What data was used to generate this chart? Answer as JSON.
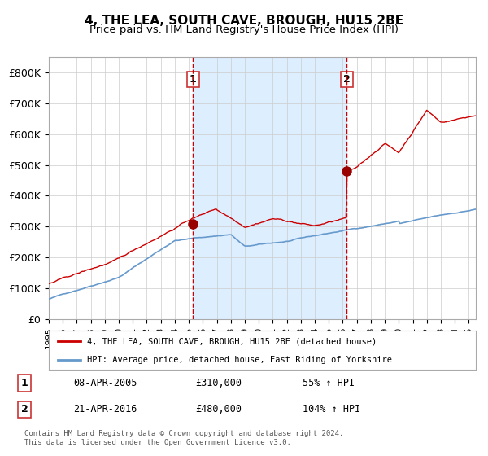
{
  "title": "4, THE LEA, SOUTH CAVE, BROUGH, HU15 2BE",
  "subtitle": "Price paid vs. HM Land Registry's House Price Index (HPI)",
  "title_fontsize": 11,
  "subtitle_fontsize": 9.5,
  "legend_label_red": "4, THE LEA, SOUTH CAVE, BROUGH, HU15 2BE (detached house)",
  "legend_label_blue": "HPI: Average price, detached house, East Riding of Yorkshire",
  "sale1_date": "08-APR-2005",
  "sale1_price": 310000,
  "sale1_hpi": "55% ↑ HPI",
  "sale2_date": "21-APR-2016",
  "sale2_price": 480000,
  "sale2_hpi": "104% ↑ HPI",
  "footer": "Contains HM Land Registry data © Crown copyright and database right 2024.\nThis data is licensed under the Open Government Licence v3.0.",
  "red_color": "#cc0000",
  "blue_color": "#6699cc",
  "marker_color": "#990000",
  "dashed_color": "#cc0000",
  "shade_color": "#ddeeff",
  "background_color": "#ffffff",
  "grid_color": "#cccccc",
  "ylim": [
    0,
    850000
  ],
  "xlabel_fontsize": 7.5,
  "ylabel_fontsize": 9,
  "sale1_x": 2005.29,
  "sale2_x": 2016.29
}
